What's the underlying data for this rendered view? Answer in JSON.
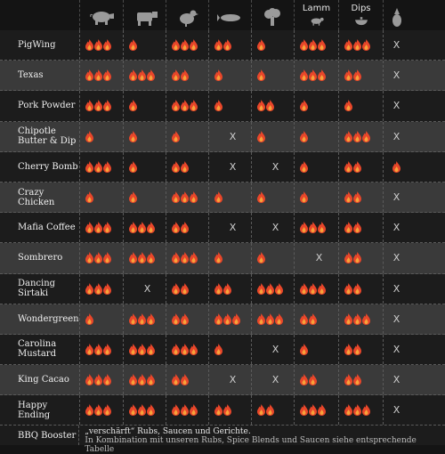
{
  "header": {
    "columns": [
      {
        "icon": "pig-icon",
        "label": ""
      },
      {
        "icon": "cow-icon",
        "label": ""
      },
      {
        "icon": "chicken-icon",
        "label": ""
      },
      {
        "icon": "fish-icon",
        "label": ""
      },
      {
        "icon": "broccoli-icon",
        "label": ""
      },
      {
        "icon": "lamb-icon",
        "label": "Lamm"
      },
      {
        "icon": "dip-bowl-icon",
        "label": "Dips"
      },
      {
        "icon": "pineapple-icon",
        "label": ""
      }
    ]
  },
  "colors": {
    "flame_outer": "#e8462a",
    "flame_inner": "#f7a33a",
    "row_alt": "#3a3a3a",
    "row_dark": "#1c1c1c"
  },
  "rows": [
    {
      "name": "PigWing",
      "ratings": [
        3,
        1,
        3,
        2,
        1,
        3,
        3,
        "X"
      ]
    },
    {
      "name": "Texas",
      "ratings": [
        3,
        3,
        2,
        1,
        1,
        3,
        2,
        "X"
      ]
    },
    {
      "name": "Pork Powder",
      "ratings": [
        3,
        1,
        3,
        1,
        2,
        1,
        1,
        "X"
      ]
    },
    {
      "name": "Chipotle Butter & Dip",
      "ratings": [
        1,
        1,
        1,
        "X",
        1,
        1,
        3,
        "X"
      ]
    },
    {
      "name": "Cherry Bomb",
      "ratings": [
        3,
        1,
        2,
        "X",
        "X",
        1,
        2,
        1
      ]
    },
    {
      "name": "Crazy Chicken",
      "ratings": [
        1,
        1,
        3,
        1,
        1,
        1,
        2,
        "X"
      ]
    },
    {
      "name": "Mafia Coffee",
      "ratings": [
        3,
        3,
        2,
        "X",
        "X",
        3,
        2,
        "X"
      ]
    },
    {
      "name": "Sombrero",
      "ratings": [
        3,
        3,
        3,
        1,
        1,
        "X",
        2,
        "X"
      ]
    },
    {
      "name": "Dancing Sirtaki",
      "ratings": [
        3,
        "X",
        2,
        2,
        3,
        3,
        2,
        "X"
      ]
    },
    {
      "name": "Wondergreen",
      "ratings": [
        1,
        3,
        2,
        3,
        3,
        2,
        3,
        "X"
      ]
    },
    {
      "name": "Carolina Mustard",
      "ratings": [
        3,
        3,
        3,
        1,
        "X",
        1,
        2,
        "X"
      ]
    },
    {
      "name": "King Cacao",
      "ratings": [
        3,
        3,
        2,
        "X",
        "X",
        2,
        2,
        "X"
      ]
    },
    {
      "name": "Happy Ending",
      "ratings": [
        3,
        3,
        3,
        2,
        2,
        3,
        3,
        "X"
      ]
    }
  ],
  "footer": {
    "name": "BBQ Booster",
    "line1": "„verschärft“ Rubs, Saucen und Gerichte.",
    "line2": "In Kombination mit unseren Rubs, Spice Blends und Saucen siehe entsprechende Tabelle"
  }
}
